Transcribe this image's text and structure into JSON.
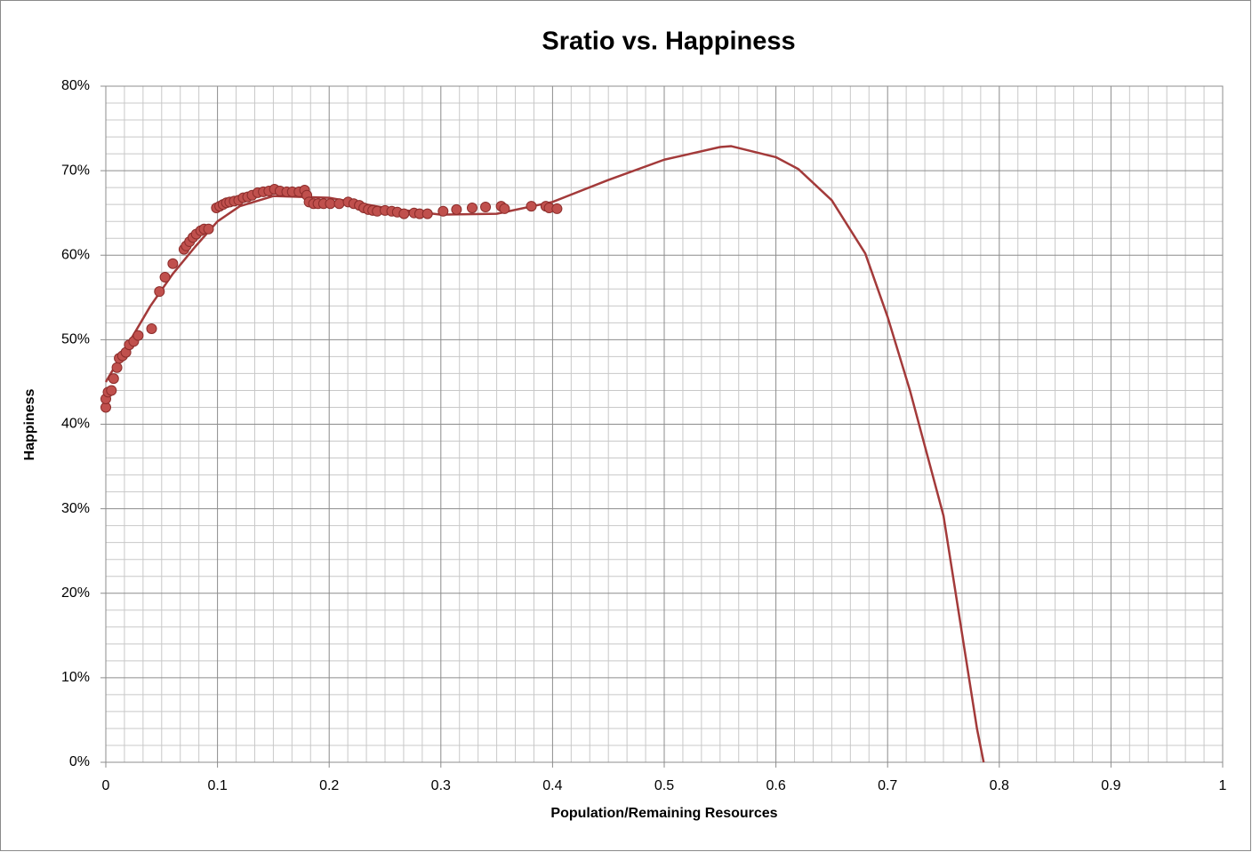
{
  "chart_data": {
    "type": "scatter",
    "title": "Sratio vs. Happiness",
    "x_label": "Population/Remaining Resources",
    "y_label": "Happiness",
    "xlim": [
      0,
      1
    ],
    "xticks": [
      0,
      0.1,
      0.2,
      0.3,
      0.4,
      0.5,
      0.6,
      0.7,
      0.8,
      0.9,
      1
    ],
    "ylim": [
      0,
      80
    ],
    "yticks": [
      {
        "value": 0,
        "label": "0%"
      },
      {
        "value": 10,
        "label": "10%"
      },
      {
        "value": 20,
        "label": "20%"
      },
      {
        "value": 30,
        "label": "30%"
      },
      {
        "value": 40,
        "label": "40%"
      },
      {
        "value": 50,
        "label": "50%"
      },
      {
        "value": 60,
        "label": "60%"
      },
      {
        "value": 70,
        "label": "70%"
      },
      {
        "value": 80,
        "label": "80%"
      }
    ],
    "grid": true,
    "minor_grid": {
      "x": 6,
      "y": 5
    },
    "series": [
      {
        "style": "markers",
        "color": "#c0504d",
        "x": [
          0,
          0,
          0.002,
          0.005,
          0.007,
          0.01,
          0.012,
          0.015,
          0.018,
          0.021,
          0.025,
          0.029,
          0.041,
          0.048,
          0.053,
          0.06,
          0.07,
          0.072,
          0.075,
          0.078,
          0.081,
          0.085,
          0.088,
          0.092,
          0.099,
          0.102,
          0.105,
          0.108,
          0.111,
          0.115,
          0.119,
          0.123,
          0.127,
          0.131,
          0.136,
          0.141,
          0.146,
          0.151,
          0.156,
          0.162,
          0.167,
          0.173,
          0.178,
          0.18,
          0.182,
          0.186,
          0.19,
          0.195,
          0.201,
          0.209,
          0.217,
          0.222,
          0.227,
          0.231,
          0.235,
          0.239,
          0.243,
          0.25,
          0.256,
          0.261,
          0.267,
          0.276,
          0.281,
          0.288,
          0.302,
          0.314,
          0.328,
          0.34,
          0.354,
          0.357,
          0.381,
          0.394,
          0.397,
          0.404
        ],
        "values": [
          42.0,
          43.0,
          43.8,
          44.0,
          45.4,
          46.7,
          47.8,
          48.1,
          48.5,
          49.4,
          49.8,
          50.5,
          51.3,
          55.7,
          57.4,
          59.0,
          60.7,
          61.1,
          61.6,
          62.1,
          62.5,
          62.9,
          63.1,
          63.1,
          65.6,
          65.8,
          66.0,
          66.2,
          66.3,
          66.4,
          66.5,
          66.8,
          66.9,
          67.1,
          67.4,
          67.5,
          67.6,
          67.8,
          67.6,
          67.5,
          67.5,
          67.5,
          67.7,
          67.1,
          66.3,
          66.1,
          66.1,
          66.1,
          66.1,
          66.1,
          66.3,
          66.1,
          65.9,
          65.6,
          65.4,
          65.3,
          65.2,
          65.3,
          65.2,
          65.1,
          64.9,
          65.0,
          64.9,
          64.9,
          65.2,
          65.4,
          65.6,
          65.7,
          65.8,
          65.5,
          65.8,
          65.8,
          65.6,
          65.5
        ]
      },
      {
        "style": "line",
        "color": "#a33a3a",
        "x": [
          0,
          0.02,
          0.04,
          0.06,
          0.08,
          0.1,
          0.12,
          0.15,
          0.2,
          0.25,
          0.3,
          0.35,
          0.4,
          0.45,
          0.5,
          0.55,
          0.56,
          0.6,
          0.62,
          0.65,
          0.68,
          0.7,
          0.72,
          0.75,
          0.78,
          0.786
        ],
        "values": [
          45.0,
          49.5,
          54.0,
          57.8,
          61.0,
          64.0,
          65.8,
          67.0,
          66.8,
          65.6,
          64.8,
          64.9,
          66.3,
          68.9,
          71.3,
          72.8,
          72.9,
          71.6,
          70.2,
          66.5,
          60.2,
          52.7,
          44.0,
          29.2,
          4.0,
          0
        ]
      }
    ]
  }
}
